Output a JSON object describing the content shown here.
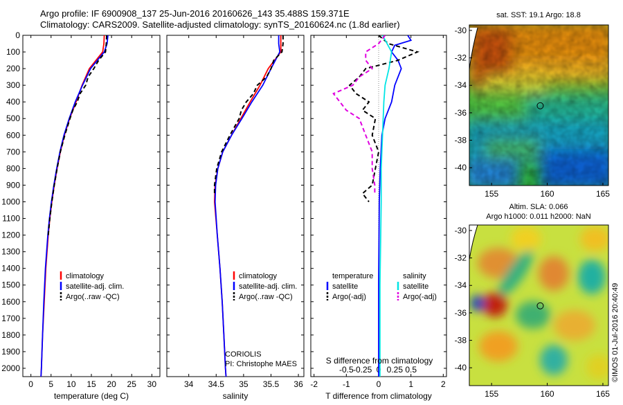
{
  "title_line1": "Argo profile: IF 6900908_137 25-Jun-2016 20160626_143 35.488S 159.371E",
  "title_line2": "Climatology: CARS2009. Satellite-adjusted climatology: synTS_20160624.nc (1.8d earlier)",
  "credit": "©IMOS 01-Jul-2016 20:40:49",
  "institution": "CORIOLIS",
  "pi": "PI: Christophe MAES",
  "colors": {
    "climatology": "#ff0000",
    "satellite": "#0000ff",
    "argo": "#000000",
    "salinity_sat": "#00e5e5",
    "salinity_argo": "#e000e0"
  },
  "chart_data": [
    {
      "type": "line",
      "xlabel": "temperature (deg C)",
      "xlim": [
        -2,
        32
      ],
      "ylim": [
        2050,
        0
      ],
      "x_ticks": [
        0,
        5,
        10,
        15,
        20,
        25,
        30
      ],
      "y_ticks": [
        0,
        100,
        200,
        300,
        400,
        500,
        600,
        700,
        800,
        900,
        1000,
        1100,
        1200,
        1300,
        1400,
        1500,
        1600,
        1700,
        1800,
        1900,
        2000
      ],
      "legend": [
        "climatology",
        "satellite-adj. clim.",
        "Argo(..raw -QC)"
      ],
      "series": [
        {
          "name": "climatology",
          "depth": [
            0,
            50,
            100,
            200,
            300,
            400,
            500,
            600,
            700,
            800,
            900,
            1000,
            1100,
            1200,
            1400,
            1600,
            1800,
            2000,
            2050
          ],
          "values": [
            18.2,
            18.1,
            17.8,
            14.5,
            12.7,
            11.2,
            9.6,
            8.3,
            7.3,
            6.5,
            5.8,
            5.2,
            4.7,
            4.3,
            3.7,
            3.3,
            2.9,
            2.6,
            2.5
          ]
        },
        {
          "name": "satellite-adj. clim.",
          "depth": [
            0,
            50,
            100,
            200,
            300,
            400,
            500,
            600,
            700,
            800,
            900,
            1000,
            1100,
            1200,
            1400,
            1600,
            1800,
            2000,
            2050
          ],
          "values": [
            19.1,
            18.9,
            18.2,
            14.8,
            12.8,
            11.0,
            9.5,
            8.2,
            7.2,
            6.4,
            5.7,
            5.1,
            4.6,
            4.2,
            3.6,
            3.2,
            2.9,
            2.6,
            2.5
          ]
        },
        {
          "name": "Argo(..raw -QC)",
          "depth": [
            0,
            50,
            100,
            150,
            200,
            250,
            300,
            350,
            400,
            450,
            500,
            600,
            700,
            800,
            900,
            1000,
            1100,
            1200
          ],
          "values": [
            18.8,
            18.7,
            18.5,
            16.8,
            15.6,
            14.2,
            13.6,
            12.2,
            11.5,
            10.4,
            9.7,
            8.4,
            7.3,
            6.5,
            5.8,
            5.2,
            4.7,
            4.3
          ]
        }
      ]
    },
    {
      "type": "line",
      "xlabel": "salinity",
      "xlim": [
        33.6,
        36.1
      ],
      "ylim": [
        2050,
        0
      ],
      "x_ticks": [
        34,
        34.5,
        35,
        35.5,
        36
      ],
      "x_tick_labels": [
        "34",
        "34.5",
        "35",
        "35.5",
        "36"
      ],
      "legend": [
        "climatology",
        "satellite-adj. clim.",
        "Argo(..raw -QC)"
      ],
      "series": [
        {
          "name": "climatology",
          "depth": [
            0,
            50,
            100,
            200,
            300,
            400,
            500,
            600,
            700,
            800,
            900,
            1000,
            1200,
            1400,
            1600,
            1800,
            2000,
            2050
          ],
          "values": [
            35.68,
            35.68,
            35.68,
            35.45,
            35.3,
            35.12,
            34.95,
            34.78,
            34.62,
            34.53,
            34.48,
            34.47,
            34.52,
            34.57,
            34.61,
            34.64,
            34.67,
            34.68
          ]
        },
        {
          "name": "satellite-adj. clim.",
          "depth": [
            0,
            50,
            100,
            200,
            300,
            400,
            500,
            600,
            700,
            800,
            900,
            1000,
            1200,
            1400,
            1600,
            1800,
            2000,
            2050
          ],
          "values": [
            35.64,
            35.64,
            35.66,
            35.5,
            35.35,
            35.15,
            34.97,
            34.78,
            34.62,
            34.53,
            34.49,
            34.48,
            34.52,
            34.57,
            34.61,
            34.64,
            34.67,
            34.68
          ]
        },
        {
          "name": "Argo(..raw -QC)",
          "depth": [
            0,
            50,
            100,
            150,
            200,
            250,
            300,
            350,
            400,
            450,
            500,
            600,
            700,
            800,
            900,
            950
          ],
          "values": [
            35.72,
            35.72,
            35.7,
            35.55,
            35.5,
            35.42,
            35.25,
            35.18,
            35.05,
            34.96,
            34.92,
            34.75,
            34.6,
            34.51,
            34.47,
            34.47
          ]
        }
      ]
    },
    {
      "type": "line",
      "xlabel": "T difference from climatology",
      "xlabel_top": "S difference from climatology",
      "xlim": [
        -2.1,
        2.1
      ],
      "ylim": [
        2050,
        0
      ],
      "x_ticks": [
        -2,
        -1,
        0,
        1,
        2
      ],
      "x_tick_labels": [
        "-2",
        "-1",
        "0",
        "1",
        "2"
      ],
      "x_ticks_top_labels": [
        "-0.5",
        "-0.25",
        "0",
        "0.25",
        "0.5"
      ],
      "legend_temperature_title": "temperature",
      "legend_salinity_title": "salinity",
      "legend_temperature": [
        "satellite",
        "Argo(-adj)"
      ],
      "legend_salinity": [
        "satellite",
        "Argo(-adj)"
      ],
      "series": [
        {
          "name": "satellite",
          "group": "temperature",
          "depth": [
            0,
            30,
            60,
            100,
            150,
            200,
            300,
            400,
            500,
            600,
            800,
            1000,
            1500,
            2050
          ],
          "values": [
            0.9,
            1.0,
            0.5,
            0.4,
            0.6,
            0.7,
            0.5,
            0.4,
            0.2,
            0.1,
            0.05,
            0.02,
            0.0,
            0.0
          ]
        },
        {
          "name": "Argo(-adj)",
          "group": "temperature",
          "depth": [
            0,
            50,
            100,
            150,
            200,
            250,
            300,
            350,
            400,
            450,
            500,
            600,
            700,
            800,
            900,
            950,
            1000
          ],
          "values": [
            0.0,
            0.3,
            1.2,
            0.6,
            -0.4,
            -0.6,
            -0.9,
            -0.7,
            -0.3,
            -0.5,
            -0.1,
            -0.2,
            0.0,
            -0.1,
            -0.2,
            -0.5,
            -0.3
          ]
        },
        {
          "name": "satellite",
          "group": "salinity",
          "depth": [
            0,
            100,
            200,
            300,
            400,
            600,
            800,
            1000,
            1500,
            2050
          ],
          "values": [
            0.03,
            0.1,
            0.08,
            0.05,
            0.04,
            0.03,
            0.02,
            0.02,
            0.01,
            0.01
          ]
        },
        {
          "name": "Argo(-adj)",
          "group": "salinity",
          "depth": [
            0,
            50,
            100,
            150,
            200,
            250,
            300,
            350,
            400,
            450,
            500,
            600,
            700,
            800,
            900,
            950
          ],
          "values": [
            0.05,
            0.0,
            -0.1,
            -0.1,
            -0.05,
            -0.15,
            -0.2,
            -0.35,
            -0.3,
            -0.25,
            -0.15,
            -0.1,
            -0.05,
            -0.05,
            -0.03,
            -0.03
          ]
        }
      ]
    },
    {
      "type": "heatmap",
      "title": "sat. SST: 19.1 Argo: 18.8",
      "xlim": [
        153,
        165.5
      ],
      "ylim": [
        -41.3,
        -29.6
      ],
      "x_ticks": [
        155,
        160,
        165
      ],
      "y_ticks": [
        -30,
        -32,
        -34,
        -36,
        -38,
        -40
      ],
      "marker": {
        "lon": 159.371,
        "lat": -35.488
      }
    },
    {
      "type": "heatmap",
      "title_line1": "Altim. SLA: 0.066",
      "title_line2": "Argo h1000: 0.011 h2000: NaN",
      "xlim": [
        153,
        165.5
      ],
      "ylim": [
        -41.3,
        -29.6
      ],
      "x_ticks": [
        155,
        160,
        165
      ],
      "y_ticks": [
        -30,
        -32,
        -34,
        -36,
        -38,
        -40
      ],
      "marker": {
        "lon": 159.371,
        "lat": -35.488
      }
    }
  ]
}
